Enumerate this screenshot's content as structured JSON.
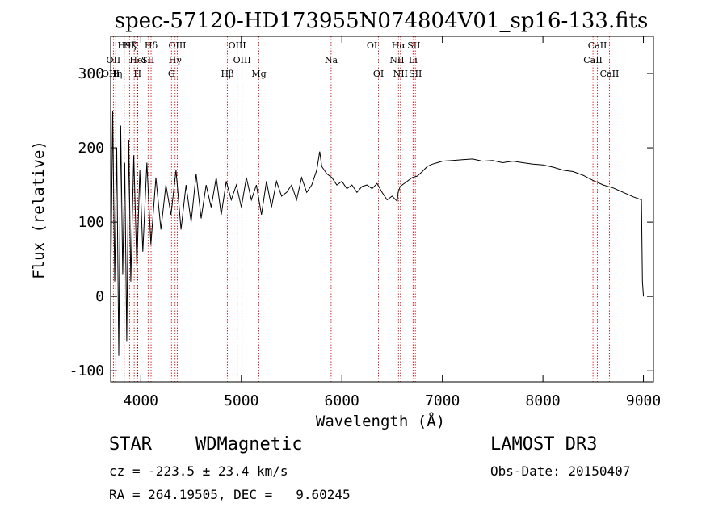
{
  "chart_data": {
    "type": "line",
    "title": "spec-57120-HD173955N074804V01_sp16-133.fits",
    "xlabel": "Wavelength (Å)",
    "ylabel": "Flux (relative)",
    "xlim": [
      3700,
      9100
    ],
    "ylim": [
      -115,
      350
    ],
    "xticks": [
      4000,
      5000,
      6000,
      7000,
      8000,
      9000
    ],
    "yticks": [
      -100,
      0,
      100,
      200,
      300
    ],
    "series": [
      {
        "name": "flux",
        "x": [
          3700,
          3720,
          3740,
          3760,
          3780,
          3800,
          3820,
          3840,
          3860,
          3880,
          3900,
          3930,
          3960,
          3990,
          4020,
          4060,
          4100,
          4150,
          4200,
          4250,
          4300,
          4350,
          4400,
          4450,
          4500,
          4550,
          4600,
          4650,
          4700,
          4750,
          4800,
          4850,
          4900,
          4950,
          5000,
          5050,
          5100,
          5150,
          5200,
          5250,
          5300,
          5350,
          5400,
          5450,
          5500,
          5550,
          5600,
          5650,
          5700,
          5750,
          5780,
          5800,
          5850,
          5900,
          5950,
          6000,
          6050,
          6100,
          6150,
          6200,
          6250,
          6300,
          6350,
          6400,
          6450,
          6500,
          6550,
          6560,
          6580,
          6600,
          6650,
          6700,
          6750,
          6800,
          6850,
          6900,
          6950,
          7000,
          7100,
          7200,
          7300,
          7400,
          7500,
          7600,
          7700,
          7800,
          7900,
          8000,
          8100,
          8200,
          8300,
          8400,
          8500,
          8600,
          8700,
          8800,
          8900,
          8980,
          8990,
          9000
        ],
        "y": [
          0,
          250,
          20,
          200,
          -80,
          230,
          30,
          180,
          -60,
          210,
          20,
          190,
          40,
          170,
          60,
          180,
          70,
          160,
          90,
          150,
          110,
          170,
          90,
          150,
          100,
          165,
          105,
          150,
          120,
          160,
          110,
          155,
          130,
          150,
          120,
          160,
          130,
          150,
          110,
          155,
          120,
          155,
          135,
          140,
          150,
          130,
          160,
          140,
          150,
          170,
          195,
          175,
          165,
          160,
          150,
          155,
          145,
          150,
          140,
          148,
          150,
          145,
          152,
          140,
          130,
          135,
          128,
          140,
          148,
          150,
          155,
          160,
          162,
          168,
          175,
          178,
          180,
          182,
          183,
          184,
          185,
          182,
          183,
          180,
          182,
          180,
          178,
          177,
          174,
          170,
          168,
          163,
          156,
          150,
          146,
          140,
          134,
          130,
          20,
          0
        ]
      }
    ],
    "lines": [
      {
        "label": "H9",
        "x": 3835,
        "row": 1
      },
      {
        "label": "Hζ",
        "x": 3889,
        "row": 1
      },
      {
        "label": "K",
        "x": 3934,
        "row": 1
      },
      {
        "label": "Hδ",
        "x": 4102,
        "row": 1
      },
      {
        "label": "OII",
        "x": 3727,
        "row": 2
      },
      {
        "label": "HeI",
        "x": 3970,
        "row": 2
      },
      {
        "label": "SII",
        "x": 4072,
        "row": 2
      },
      {
        "label": "OIII",
        "x": 4363,
        "row": 1
      },
      {
        "label": "Hγ",
        "x": 4341,
        "row": 2
      },
      {
        "label": "G",
        "x": 4305,
        "row": 3
      },
      {
        "label": "OIII",
        "x": 4959,
        "row": 1
      },
      {
        "label": "OIII",
        "x": 5007,
        "row": 2
      },
      {
        "label": "Hβ",
        "x": 4861,
        "row": 3
      },
      {
        "label": "Mg",
        "x": 5175,
        "row": 3
      },
      {
        "label": "Na",
        "x": 5893,
        "row": 2
      },
      {
        "label": "OI",
        "x": 6300,
        "row": 1
      },
      {
        "label": "OI",
        "x": 6364,
        "row": 3
      },
      {
        "label": "Hα",
        "x": 6563,
        "row": 1
      },
      {
        "label": "SII",
        "x": 6716,
        "row": 1
      },
      {
        "label": "NII",
        "x": 6548,
        "row": 2
      },
      {
        "label": "Li",
        "x": 6708,
        "row": 2
      },
      {
        "label": "NII",
        "x": 6583,
        "row": 3
      },
      {
        "label": "SII",
        "x": 6731,
        "row": 3
      },
      {
        "label": "CaII",
        "x": 8542,
        "row": 1
      },
      {
        "label": "CaII",
        "x": 8498,
        "row": 2
      },
      {
        "label": "CaII",
        "x": 8662,
        "row": 3
      },
      {
        "label": "OIII",
        "x": 3700,
        "row": 3
      },
      {
        "label": "Hη",
        "x": 3750,
        "row": 3
      },
      {
        "label": "H",
        "x": 3968,
        "row": 3
      }
    ]
  },
  "info": {
    "class_label": "STAR",
    "subclass_label": "WDMagnetic",
    "survey": "LAMOST DR3",
    "cz": "cz = -223.5 ± 23.4 km/s",
    "obs_date": "Obs-Date: 20150407",
    "coords": "RA = 264.19505, DEC =   9.60245"
  },
  "colors": {
    "line_marker": "#cc0000",
    "spectrum": "#000000"
  }
}
